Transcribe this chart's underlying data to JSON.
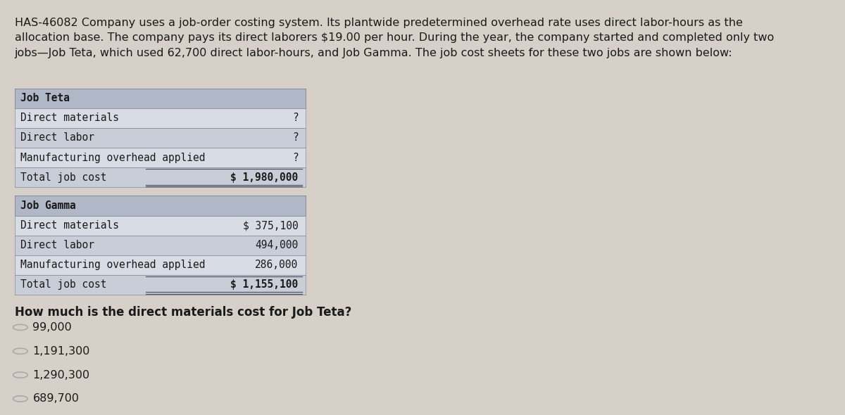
{
  "background_color": "#d6d0c8",
  "content_bg": "#e8e4dc",
  "header_text": "HAS-46082 Company uses a job-order costing system. Its plantwide predetermined overhead rate uses direct labor-hours as the\nallocation base. The company pays its direct laborers $19.00 per hour. During the year, the company started and completed only two\njobs—Job Teta, which used 62,700 direct labor-hours, and Job Gamma. The job cost sheets for these two jobs are shown below:",
  "table_header_bg": "#b0b8c8",
  "table_row_bg": "#d8dce4",
  "table_alt_bg": "#c8cdd8",
  "job_teta_header": "Job Teta",
  "job_teta_rows": [
    [
      "Direct materials",
      "?"
    ],
    [
      "Direct labor",
      "?"
    ],
    [
      "Manufacturing overhead applied",
      "?"
    ],
    [
      "Total job cost",
      "$ 1,980,000"
    ]
  ],
  "job_gamma_header": "Job Gamma",
  "job_gamma_rows": [
    [
      "Direct materials",
      "$ 375,100"
    ],
    [
      "Direct labor",
      "494,000"
    ],
    [
      "Manufacturing overhead applied",
      "286,000"
    ],
    [
      "Total job cost",
      "$ 1,155,100"
    ]
  ],
  "question": "How much is the direct materials cost for Job Teta?",
  "choices": [
    "99,000",
    "1,191,300",
    "1,290,300",
    "689,700"
  ],
  "header_fontsize": 11.5,
  "table_fontsize": 10.5,
  "question_fontsize": 12,
  "choice_fontsize": 11.5,
  "font_family": "monospace",
  "text_color": "#1a1a1a"
}
